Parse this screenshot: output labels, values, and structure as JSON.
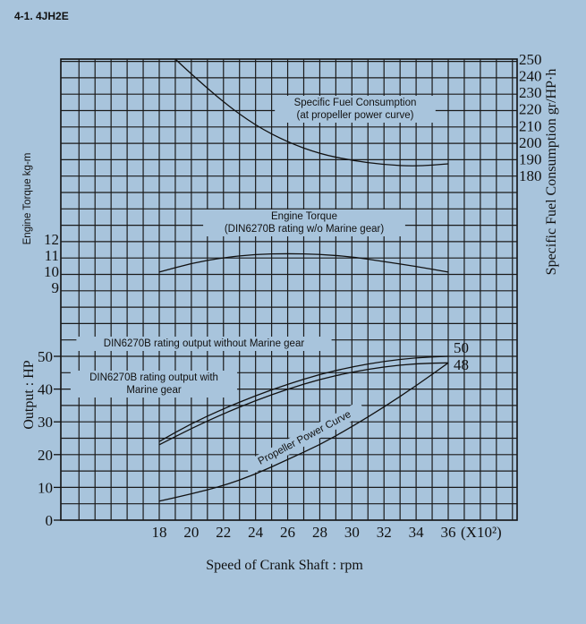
{
  "page": {
    "title": "4-1. 4JH2E"
  },
  "chart_data": [
    {
      "type": "line",
      "name": "fuel",
      "ylabel": "Specific Fuel Consumption gr/HP·h",
      "ylim": [
        180,
        250
      ],
      "yticks": [
        180,
        190,
        200,
        210,
        220,
        230,
        240,
        250
      ],
      "ytick_labels": [
        "180",
        "190",
        "200",
        "210",
        "220",
        "230",
        "240",
        "250"
      ],
      "series": [
        {
          "label_lines": [
            "Specific Fuel Consumption",
            "(at propeller power curve)"
          ],
          "x": [
            19,
            20,
            22,
            24,
            26,
            28,
            30,
            32,
            34,
            36
          ],
          "y": [
            250,
            241,
            224,
            210,
            200,
            193,
            189,
            186.5,
            185.5,
            187
          ]
        }
      ]
    },
    {
      "type": "line",
      "name": "torque",
      "ylabel": "Engine Torque kg-m",
      "ylim": [
        9,
        12
      ],
      "yticks": [
        9,
        10,
        11,
        12
      ],
      "ytick_labels": [
        "9",
        "10",
        "11",
        "12"
      ],
      "series": [
        {
          "label_lines": [
            "Engine Torque",
            "(DIN6270B rating w/o Marine gear)"
          ],
          "x": [
            18,
            20,
            22,
            24,
            26,
            28,
            30,
            32,
            34,
            36
          ],
          "y": [
            9.95,
            10.5,
            10.85,
            11.05,
            11.1,
            11.05,
            10.9,
            10.6,
            10.3,
            9.95
          ]
        }
      ]
    },
    {
      "type": "line",
      "name": "output",
      "xlabel": "Speed of Crank Shaft : rpm",
      "ylabel": "Output : HP",
      "x_unit": "(X10²)",
      "xlim": [
        14,
        36
      ],
      "xticks": [
        18,
        20,
        22,
        24,
        26,
        28,
        30,
        32,
        34,
        36
      ],
      "xtick_labels": [
        "18",
        "20",
        "22",
        "24",
        "26",
        "28",
        "30",
        "32",
        "34",
        "36"
      ],
      "ylim": [
        0,
        50
      ],
      "yticks": [
        0,
        10,
        20,
        30,
        40,
        50
      ],
      "ytick_labels": [
        "0",
        "10",
        "20",
        "30",
        "40",
        "50"
      ],
      "series": [
        {
          "label": "DIN6270B rating output without Marine gear",
          "x": [
            18,
            20,
            22,
            24,
            26,
            28,
            30,
            32,
            34,
            36
          ],
          "y": [
            24,
            29.5,
            34,
            38,
            41.5,
            44.5,
            46.8,
            48.5,
            49.6,
            50
          ]
        },
        {
          "label_lines": [
            "DIN6270B rating output with",
            "Marine gear"
          ],
          "x": [
            18,
            20,
            22,
            24,
            26,
            28,
            30,
            32,
            34,
            36
          ],
          "y": [
            23,
            28,
            32.5,
            36.5,
            40,
            43,
            45.2,
            46.8,
            47.8,
            48
          ]
        },
        {
          "label": "Propeller Power Curve",
          "x": [
            18,
            20,
            22,
            24,
            26,
            28,
            30,
            32,
            34,
            36
          ],
          "y": [
            5.8,
            8,
            10.5,
            14,
            18.5,
            23,
            28.5,
            34.5,
            41,
            48
          ]
        }
      ],
      "end_labels": [
        "50",
        "48"
      ]
    }
  ]
}
